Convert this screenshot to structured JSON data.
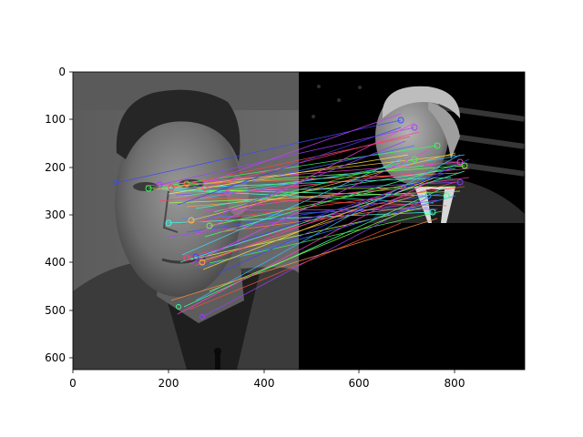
{
  "figure": {
    "x_ticks": [
      "0",
      "200",
      "400",
      "600",
      "800"
    ],
    "y_ticks": [
      "0",
      "100",
      "200",
      "300",
      "400",
      "500",
      "600"
    ],
    "x_range": [
      0,
      949
    ],
    "y_range": [
      0,
      625
    ]
  },
  "image": {
    "left_panel": "grayscale portrait of a man in a dark jacket against a gray background",
    "right_panel": "grayscale portrait of a man in a suit and tie in front of a flag, placed in the upper part of a black area",
    "overlay": "colored keypoint match lines connecting facial features of the left portrait to the right portrait"
  }
}
